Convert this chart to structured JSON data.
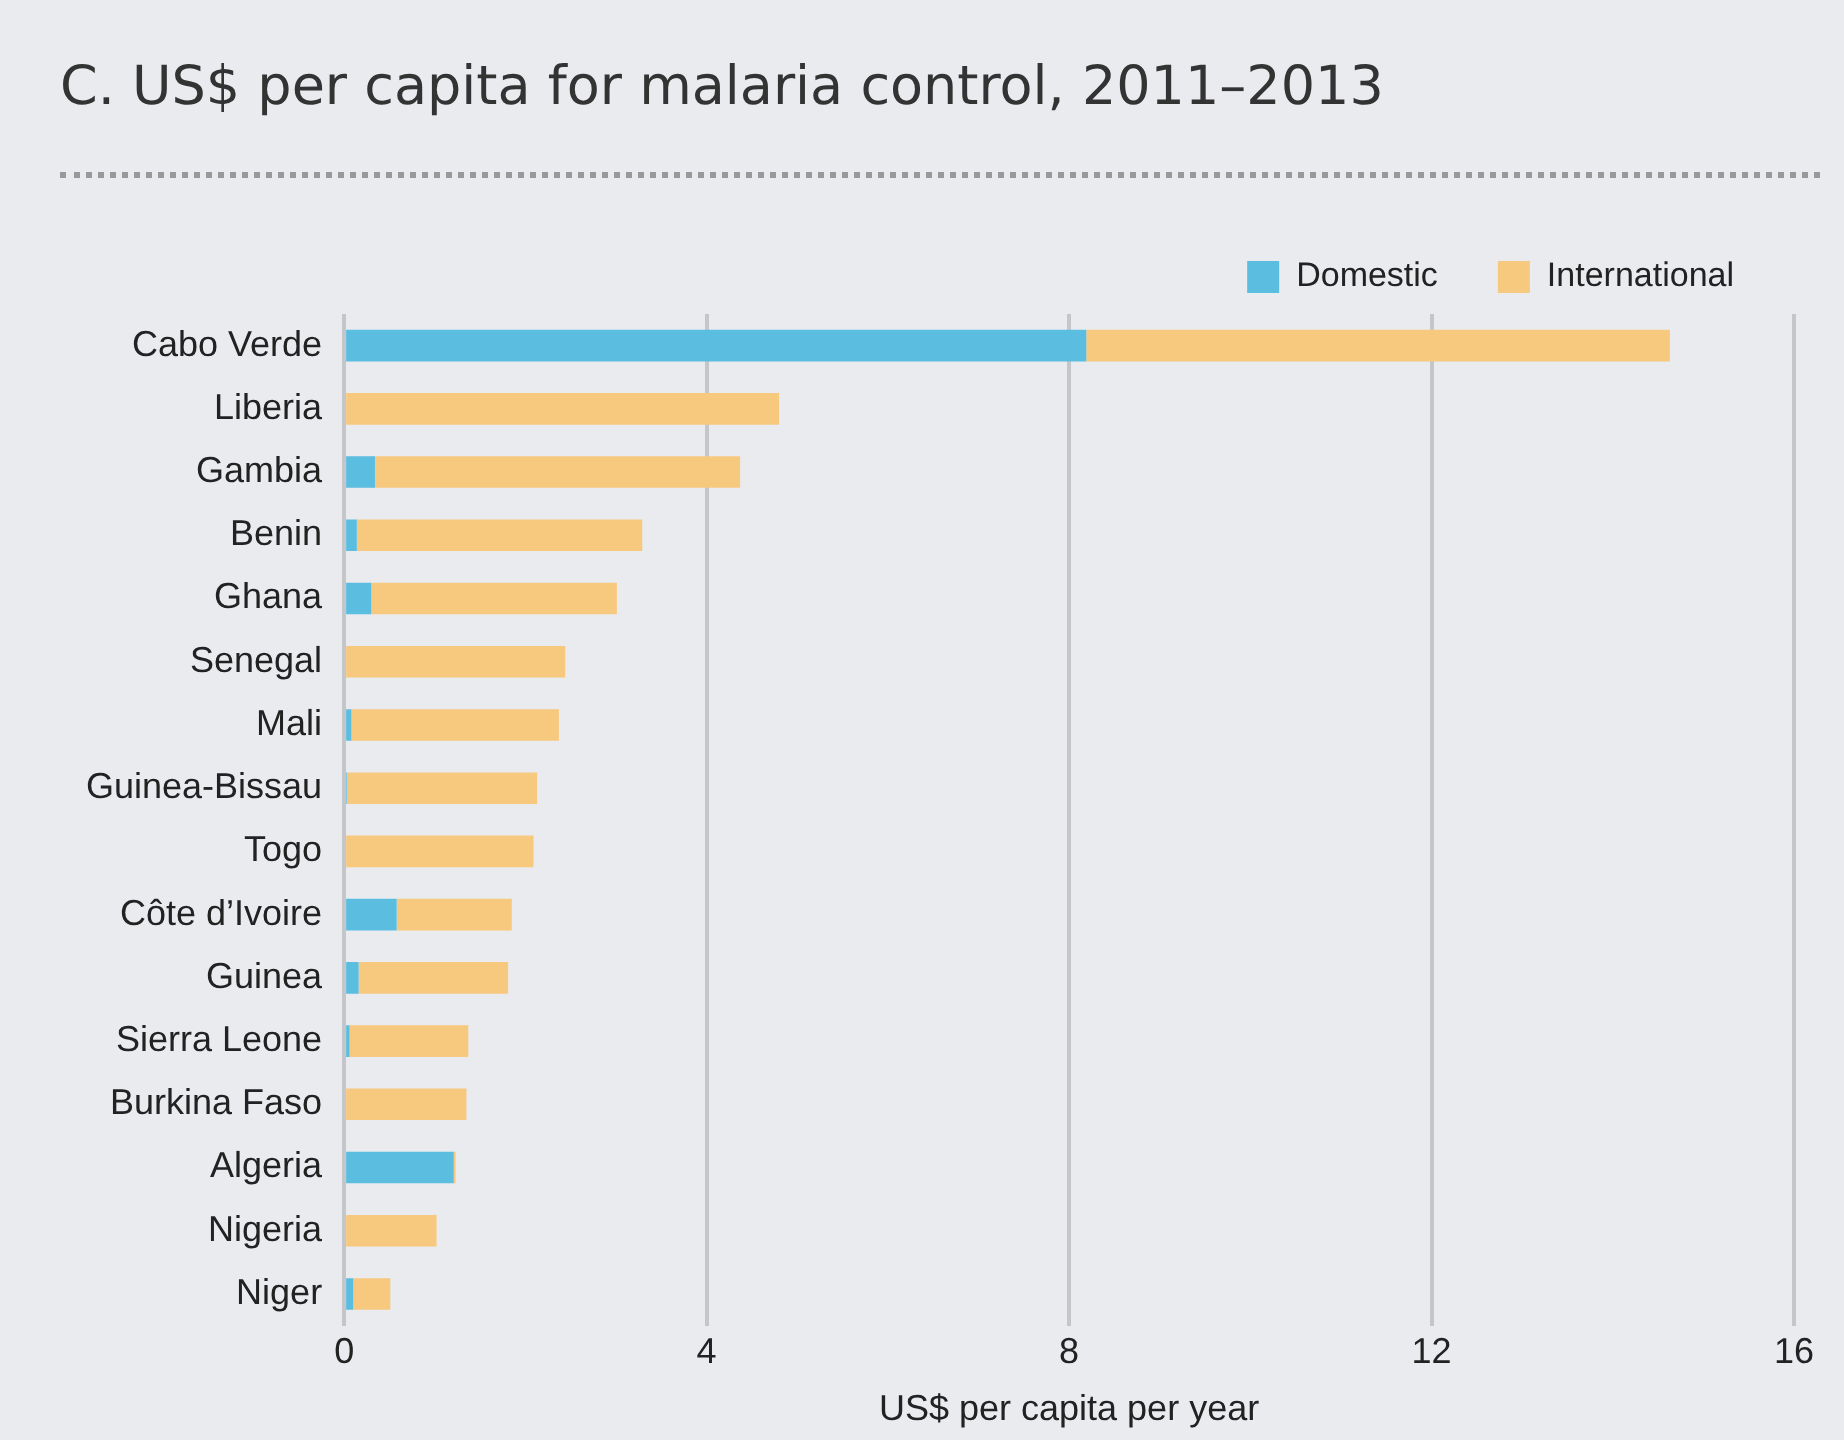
{
  "chart_data": {
    "type": "bar",
    "title": "C. US$ per capita for malaria control, 2011–2013",
    "xlabel": "US$ per capita per year",
    "orientation": "horizontal",
    "stacked": true,
    "grid": "x",
    "legend": "top right",
    "categories": [
      "Cabo Verde",
      "Liberia",
      "Gambia",
      "Benin",
      "Ghana",
      "Senegal",
      "Mali",
      "Guinea-Bissau",
      "Togo",
      "Côte d’Ivoire",
      "Guinea",
      "Sierra Leone",
      "Burkina Faso",
      "Algeria",
      "Nigeria",
      "Niger"
    ],
    "series": [
      {
        "name": "Domestic",
        "color": "#5bbde0",
        "values": [
          8.19,
          0,
          0.34,
          0.14,
          0.3,
          0,
          0.08,
          0.03,
          0,
          0.58,
          0.16,
          0.06,
          0,
          1.21,
          null,
          0.1
        ]
      },
      {
        "name": "International",
        "color": "#f7c97e",
        "values": [
          6.44,
          4.8,
          4.03,
          3.15,
          2.71,
          2.44,
          2.29,
          2.1,
          2.09,
          1.27,
          1.65,
          1.31,
          1.35,
          0.02,
          1.02,
          0.41
        ]
      }
    ],
    "xlim": [
      0,
      16
    ],
    "xticks": [
      0,
      4,
      8,
      12,
      16
    ]
  }
}
